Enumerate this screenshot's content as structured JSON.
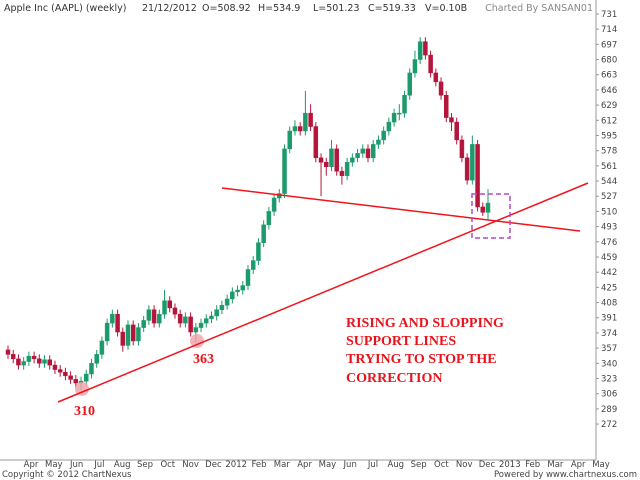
{
  "chart_data": {
    "type": "candlestick",
    "title": "Apple Inc (AAPL) (weekly)",
    "header": [
      "21/12/2012",
      "O=508.92",
      "H=534.9",
      "L=501.23",
      "C=519.33",
      "V=0.10B"
    ],
    "credit": "Charted By SANSAN01",
    "footer_left": "Copyright © 2012 ChartNexus",
    "footer_right": "Powered by www.chartnexus.com",
    "categories": [
      "Apr",
      "May",
      "Jun",
      "Jul",
      "Aug",
      "Sep",
      "Oct",
      "Nov",
      "Dec",
      "2012",
      "Feb",
      "Mar",
      "Apr",
      "May",
      "Jun",
      "Jul",
      "Aug",
      "Sep",
      "Oct",
      "Nov",
      "Dec",
      "2013",
      "Feb",
      "Mar",
      "Apr",
      "May"
    ],
    "open": [
      355,
      350,
      345,
      338,
      342,
      348,
      345,
      340,
      344,
      338,
      333,
      330,
      326,
      322,
      318,
      320,
      328,
      340,
      350,
      365,
      385,
      395,
      375,
      360,
      383,
      365,
      380,
      388,
      400,
      385,
      395,
      410,
      402,
      395,
      385,
      392,
      375,
      380,
      385,
      390,
      393,
      400,
      405,
      412,
      420,
      422,
      427,
      445,
      455,
      475,
      495,
      510,
      525,
      530,
      580,
      600,
      605,
      600,
      620,
      605,
      570,
      565,
      560,
      580,
      555,
      550,
      565,
      570,
      575,
      580,
      570,
      585,
      590,
      600,
      610,
      620,
      620,
      640,
      665,
      680,
      700,
      685,
      665,
      655,
      640,
      615,
      610,
      590,
      570,
      545,
      585,
      515,
      508.92
    ],
    "high": [
      360,
      355,
      350,
      347,
      353,
      353,
      350,
      349,
      349,
      343,
      338,
      335,
      331,
      327,
      325,
      333,
      345,
      355,
      370,
      390,
      400,
      400,
      380,
      388,
      388,
      385,
      393,
      405,
      405,
      400,
      422,
      415,
      407,
      400,
      397,
      397,
      385,
      390,
      395,
      398,
      405,
      410,
      417,
      425,
      427,
      432,
      450,
      460,
      480,
      500,
      515,
      530,
      535,
      585,
      605,
      612,
      610,
      645,
      630,
      610,
      575,
      570,
      590,
      585,
      560,
      570,
      575,
      580,
      585,
      585,
      590,
      595,
      605,
      615,
      625,
      630,
      645,
      670,
      690,
      705,
      705,
      690,
      670,
      660,
      645,
      620,
      615,
      595,
      575,
      595,
      590,
      520,
      534.9
    ],
    "low": [
      345,
      340,
      333,
      333,
      337,
      340,
      335,
      335,
      333,
      328,
      325,
      321,
      317,
      313,
      310,
      315,
      323,
      335,
      345,
      360,
      380,
      370,
      353,
      355,
      360,
      360,
      375,
      383,
      380,
      380,
      390,
      397,
      390,
      380,
      380,
      370,
      363,
      375,
      380,
      385,
      388,
      395,
      400,
      407,
      415,
      417,
      422,
      440,
      450,
      470,
      490,
      505,
      520,
      525,
      575,
      595,
      595,
      595,
      600,
      565,
      527,
      550,
      555,
      550,
      540,
      545,
      560,
      565,
      570,
      565,
      565,
      580,
      585,
      595,
      605,
      612,
      615,
      635,
      660,
      675,
      680,
      660,
      650,
      635,
      610,
      600,
      585,
      565,
      540,
      540,
      510,
      505,
      501.23
    ],
    "close": [
      350,
      345,
      338,
      342,
      348,
      345,
      340,
      344,
      338,
      333,
      330,
      326,
      322,
      318,
      320,
      328,
      340,
      350,
      365,
      385,
      395,
      375,
      360,
      383,
      365,
      380,
      388,
      400,
      385,
      395,
      410,
      402,
      395,
      385,
      392,
      375,
      380,
      385,
      390,
      393,
      400,
      405,
      412,
      420,
      422,
      427,
      445,
      455,
      475,
      495,
      510,
      525,
      530,
      580,
      600,
      605,
      600,
      620,
      605,
      570,
      565,
      560,
      580,
      555,
      550,
      565,
      570,
      575,
      580,
      570,
      585,
      590,
      600,
      610,
      620,
      620,
      640,
      665,
      680,
      700,
      685,
      665,
      655,
      640,
      615,
      610,
      590,
      570,
      545,
      585,
      515,
      509,
      519.33
    ],
    "up_color": "#1d9a6c",
    "down_color": "#b3163a",
    "ylim": [
      232,
      736
    ],
    "yticks": [
      272,
      289,
      306,
      323,
      340,
      357,
      374,
      391,
      408,
      425,
      442,
      459,
      476,
      493,
      510,
      527,
      544,
      561,
      578,
      595,
      612,
      629,
      646,
      663,
      680,
      697,
      714,
      731
    ],
    "annotation": [
      "RISING AND SLOPPING",
      "SUPPORT LINES",
      "TRYING TO STOP THE",
      "CORRECTION"
    ],
    "point_labels": [
      "310",
      "363"
    ]
  }
}
